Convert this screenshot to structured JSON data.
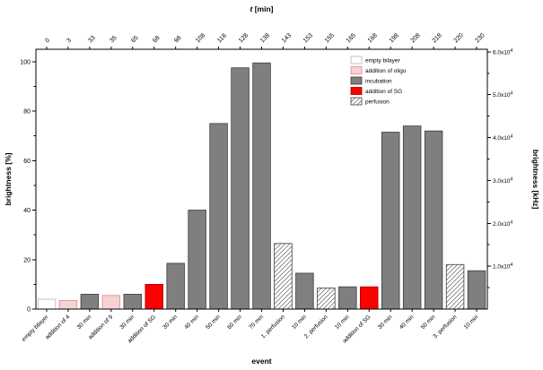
{
  "figure": {
    "background": "#ffffff"
  },
  "chart_data": {
    "type": "bar",
    "top_axis": {
      "title_italic": "t",
      "title_rest": " [min]"
    },
    "xlabel": "event",
    "ylabel_left": "brightness [%]",
    "ylabel_right": "brightness [kHz]",
    "ylim_left": [
      0,
      105
    ],
    "yticks_left": [
      0,
      20,
      40,
      60,
      80,
      100
    ],
    "right_axis": {
      "max": 60600,
      "ticks": [
        {
          "v": 10000,
          "base": "1.0x10",
          "exp": "4"
        },
        {
          "v": 20000,
          "base": "2.0x10",
          "exp": "4"
        },
        {
          "v": 30000,
          "base": "3.0x10",
          "exp": "4"
        },
        {
          "v": 40000,
          "base": "4.0x10",
          "exp": "4"
        },
        {
          "v": 50000,
          "base": "5.0x10",
          "exp": "4"
        },
        {
          "v": 60000,
          "base": "6.0x10",
          "exp": "4"
        }
      ]
    },
    "bars": [
      {
        "label": "empty bilayer",
        "t": "0",
        "value": 4,
        "kind": "empty"
      },
      {
        "label": "addition of 4",
        "t": "3",
        "value": 3.5,
        "kind": "oligo"
      },
      {
        "label": "30 min",
        "t": "33",
        "value": 6,
        "kind": "incubation"
      },
      {
        "label": "addition of 9",
        "t": "35",
        "value": 5.5,
        "kind": "oligo"
      },
      {
        "label": "30 min",
        "t": "65",
        "value": 6,
        "kind": "incubation"
      },
      {
        "label": "addition of SG",
        "t": "68",
        "value": 10,
        "kind": "sg"
      },
      {
        "label": "30 min",
        "t": "98",
        "value": 18.5,
        "kind": "incubation"
      },
      {
        "label": "40 min",
        "t": "108",
        "value": 40,
        "kind": "incubation"
      },
      {
        "label": "50 min",
        "t": "118",
        "value": 75,
        "kind": "incubation"
      },
      {
        "label": "60 min",
        "t": "128",
        "value": 97.5,
        "kind": "incubation"
      },
      {
        "label": "70 min",
        "t": "138",
        "value": 99.5,
        "kind": "incubation"
      },
      {
        "label": "1. perfusion",
        "t": "143",
        "value": 26.5,
        "kind": "perfusion"
      },
      {
        "label": "10 min",
        "t": "153",
        "value": 14.5,
        "kind": "incubation"
      },
      {
        "label": "2. perfusion",
        "t": "155",
        "value": 8.5,
        "kind": "perfusion"
      },
      {
        "label": "10 min",
        "t": "165",
        "value": 9,
        "kind": "incubation"
      },
      {
        "label": "addition of SG",
        "t": "168",
        "value": 9,
        "kind": "sg"
      },
      {
        "label": "30 min",
        "t": "198",
        "value": 71.5,
        "kind": "incubation"
      },
      {
        "label": "40 min",
        "t": "208",
        "value": 74,
        "kind": "incubation"
      },
      {
        "label": "50 min",
        "t": "218",
        "value": 72,
        "kind": "incubation"
      },
      {
        "label": "3. perfusion",
        "t": "220",
        "value": 18,
        "kind": "perfusion"
      },
      {
        "label": "10 min",
        "t": "230",
        "value": 15.5,
        "kind": "incubation"
      }
    ],
    "legend": [
      {
        "label": "empty bilayer",
        "kind": "empty"
      },
      {
        "label": "addition of oligo",
        "kind": "oligo"
      },
      {
        "label": "incubation",
        "kind": "incubation"
      },
      {
        "label": "addition of SG",
        "kind": "sg"
      },
      {
        "label": "perfusion",
        "kind": "perfusion"
      }
    ],
    "colors": {
      "axis": "#000000",
      "empty": "#ffffff",
      "empty_stroke": "#c4aeae",
      "oligo": "#f7d2d4",
      "oligo_stroke": "#d98a8e",
      "incubation": "#7f7f7f",
      "incubation_stroke": "#3c3c3c",
      "sg": "#fe0000",
      "sg_stroke": "#990000",
      "perfusion_stroke": "#3c3c3c",
      "hatch_line": "#606060"
    }
  }
}
